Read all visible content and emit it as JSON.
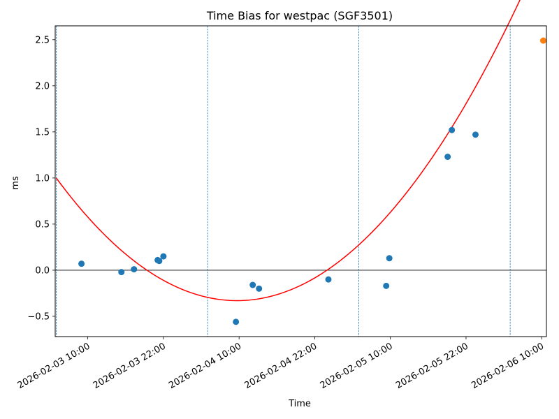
{
  "chart_data": {
    "type": "scatter",
    "title": "Time Bias for westpac (SGF3501)",
    "xlabel": "Time",
    "ylabel": "ms",
    "x_ticks": [
      {
        "value": "2026-02-03 10:00",
        "label": "2026-02-03 10:00"
      },
      {
        "value": "2026-02-03 22:00",
        "label": "2026-02-03 22:00"
      },
      {
        "value": "2026-02-04 10:00",
        "label": "2026-02-04 10:00"
      },
      {
        "value": "2026-02-04 22:00",
        "label": "2026-02-04 22:00"
      },
      {
        "value": "2026-02-05 10:00",
        "label": "2026-02-05 10:00"
      },
      {
        "value": "2026-02-05 22:00",
        "label": "2026-02-05 22:00"
      },
      {
        "value": "2026-02-06 10:00",
        "label": "2026-02-06 10:00"
      }
    ],
    "y_ticks": [
      -0.5,
      0.0,
      0.5,
      1.0,
      1.5,
      2.0,
      2.5
    ],
    "y_tick_labels": [
      "−0.5",
      "0.0",
      "0.5",
      "1.0",
      "1.5",
      "2.0",
      "2.5"
    ],
    "xlim": [
      "2026-02-03 04:50",
      "2026-02-06 10:45"
    ],
    "ylim": [
      -0.72,
      2.65
    ],
    "grid": false,
    "horizontal_zero_line": true,
    "vertical_markers": [
      "2026-02-03 05:00",
      "2026-02-04 05:00",
      "2026-02-05 05:00",
      "2026-02-06 05:00"
    ],
    "series": [
      {
        "kind": "points",
        "color": "#1f77b4",
        "points": [
          {
            "x": "2026-02-03 09:00",
            "y": 0.07
          },
          {
            "x": "2026-02-03 15:20",
            "y": -0.02
          },
          {
            "x": "2026-02-03 17:20",
            "y": 0.01
          },
          {
            "x": "2026-02-03 21:05",
            "y": 0.11
          },
          {
            "x": "2026-02-03 21:20",
            "y": 0.1
          },
          {
            "x": "2026-02-03 22:00",
            "y": 0.15
          },
          {
            "x": "2026-02-04 09:30",
            "y": -0.56
          },
          {
            "x": "2026-02-04 12:10",
            "y": -0.16
          },
          {
            "x": "2026-02-04 13:10",
            "y": -0.2
          },
          {
            "x": "2026-02-05 00:10",
            "y": -0.1
          },
          {
            "x": "2026-02-05 09:20",
            "y": -0.17
          },
          {
            "x": "2026-02-05 09:50",
            "y": 0.13
          },
          {
            "x": "2026-02-05 19:05",
            "y": 1.23
          },
          {
            "x": "2026-02-05 19:45",
            "y": 1.52
          },
          {
            "x": "2026-02-05 23:30",
            "y": 1.47
          }
        ]
      },
      {
        "kind": "points",
        "color": "#ff7f0e",
        "points": [
          {
            "x": "2026-02-06 10:15",
            "y": 2.49
          }
        ]
      },
      {
        "kind": "curve",
        "color": "#ff0000",
        "x_start": "2026-02-03 05:00",
        "x_end": "2026-02-06 10:15",
        "vertex_x": "2026-02-04 09:40",
        "vertex_y": -0.33,
        "y_at_start": 1.0
      }
    ]
  }
}
